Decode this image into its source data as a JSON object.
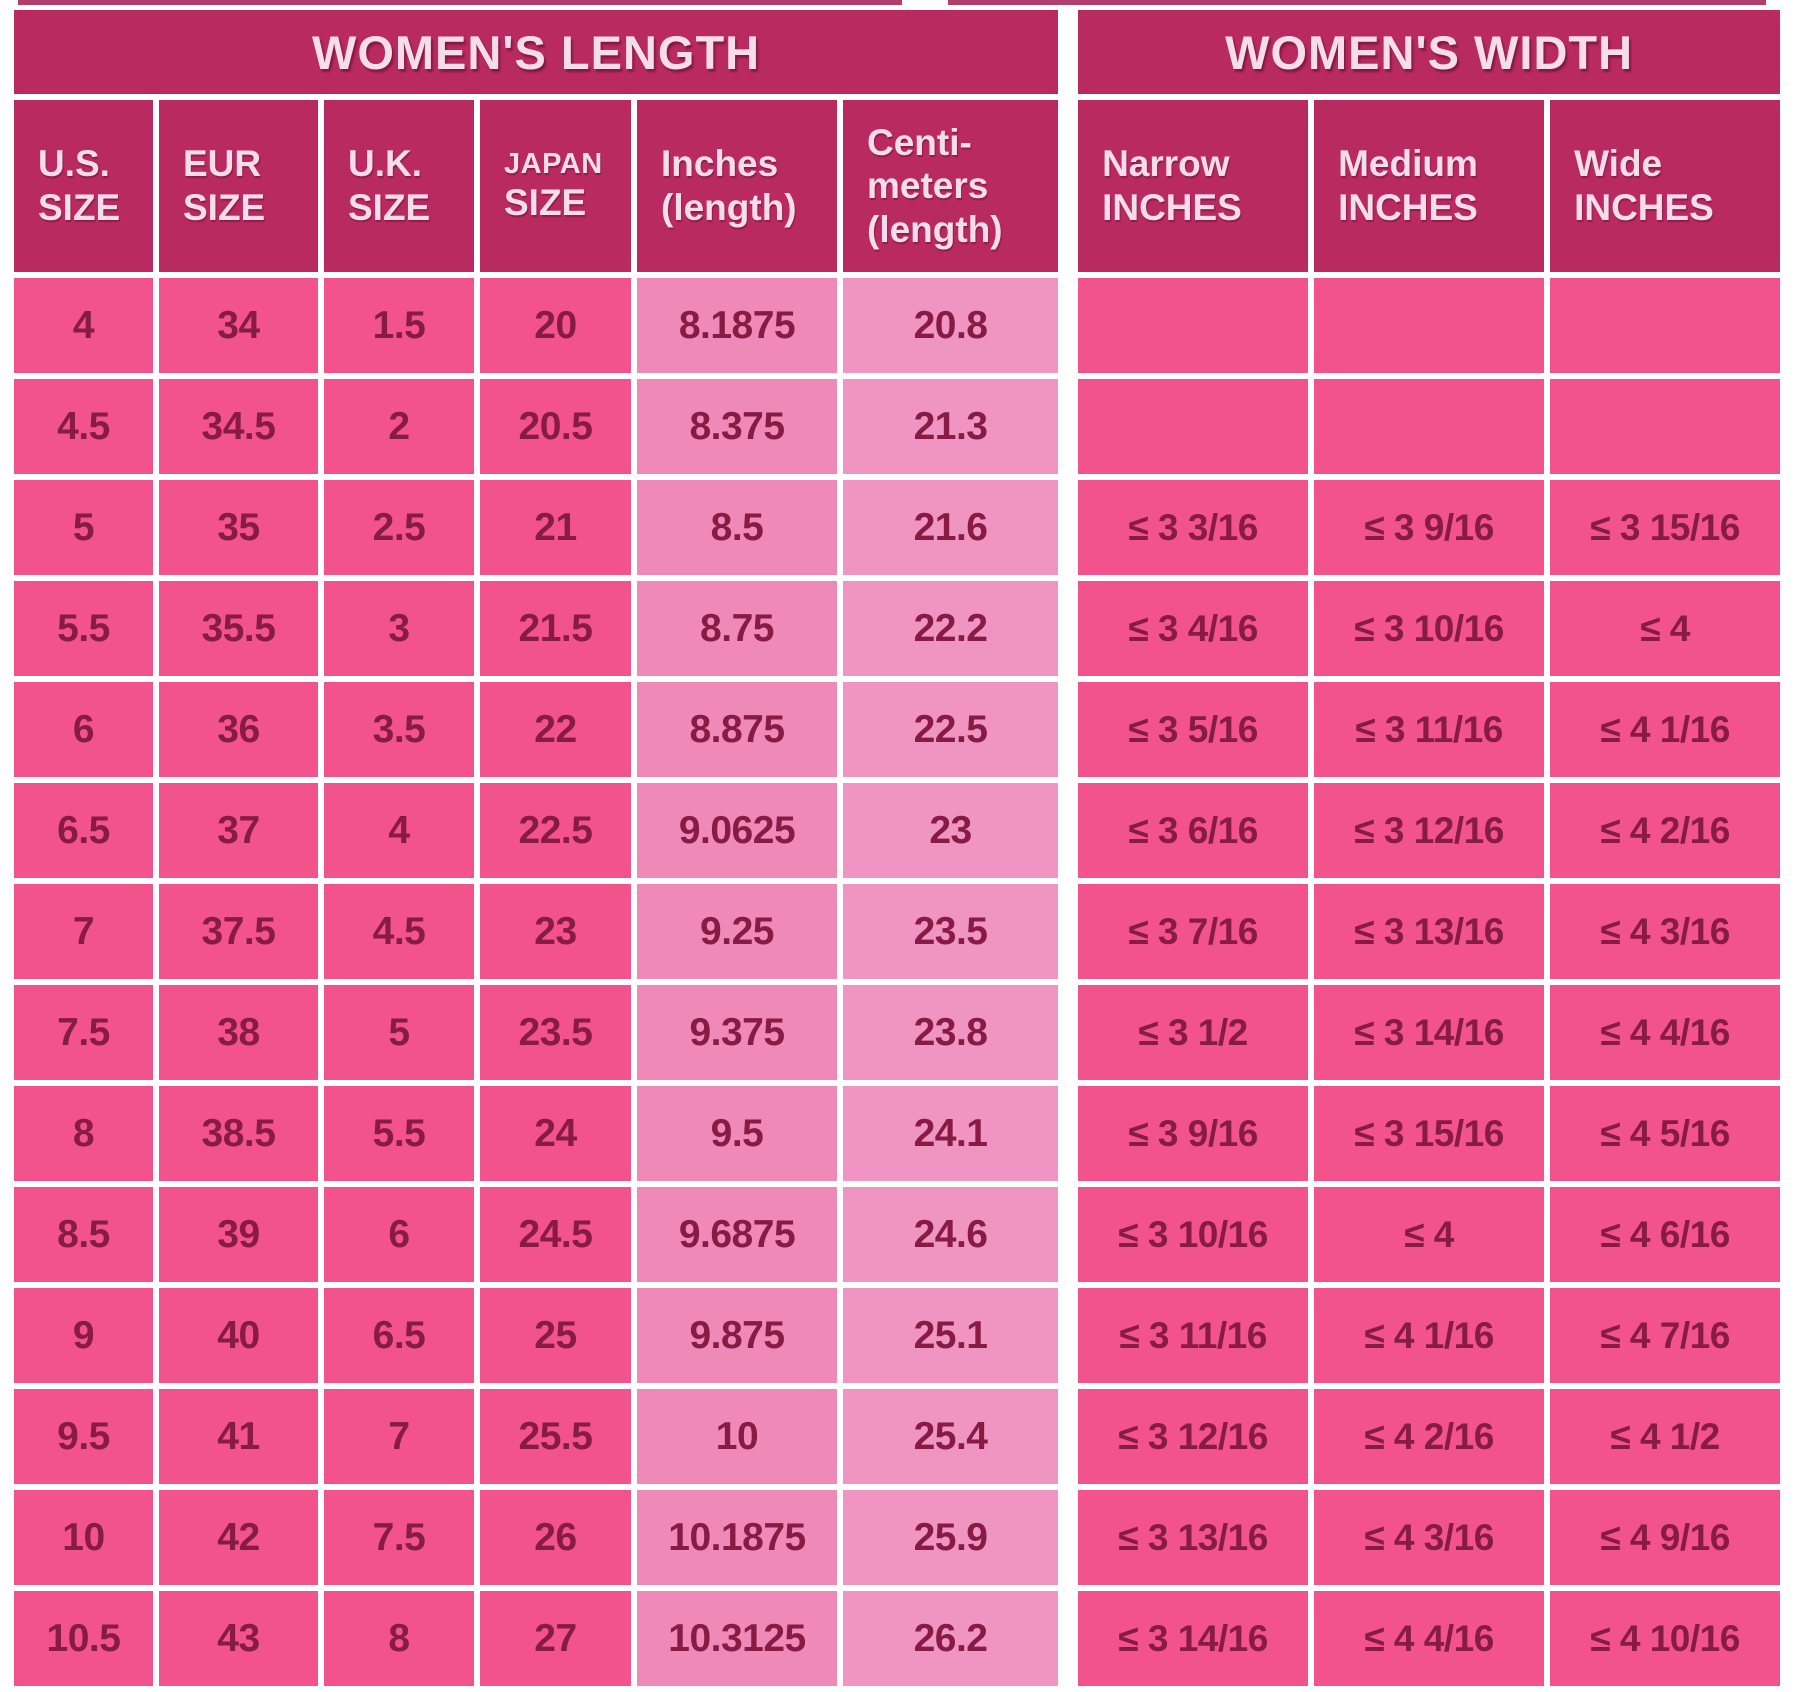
{
  "colors": {
    "page_bg": "#ffffff",
    "header_bg": "#b92b60",
    "header_text": "#f7dde9",
    "cell_pink": "#f2538c",
    "inches_col_bg": "#ef89b8",
    "cm_col_bg": "#f095c1",
    "data_text": "#871b44",
    "grid_white": "#ffffff",
    "crop_edge": "#a41c51"
  },
  "chart_data": [
    {
      "type": "table",
      "title": "WOMEN'S LENGTH",
      "columns": [
        {
          "lines": [
            "U.S.",
            "SIZE"
          ]
        },
        {
          "lines": [
            "EUR",
            "SIZE"
          ]
        },
        {
          "lines": [
            "U.K.",
            "SIZE"
          ]
        },
        {
          "lines": [
            "JAPAN",
            "SIZE"
          ],
          "first_line_small": true
        },
        {
          "lines": [
            "Inches",
            "(length)"
          ]
        },
        {
          "lines": [
            "Centi-",
            "meters",
            "(length)"
          ]
        }
      ],
      "rows": [
        [
          "4",
          "34",
          "1.5",
          "20",
          "8.1875",
          "20.8"
        ],
        [
          "4.5",
          "34.5",
          "2",
          "20.5",
          "8.375",
          "21.3"
        ],
        [
          "5",
          "35",
          "2.5",
          "21",
          "8.5",
          "21.6"
        ],
        [
          "5.5",
          "35.5",
          "3",
          "21.5",
          "8.75",
          "22.2"
        ],
        [
          "6",
          "36",
          "3.5",
          "22",
          "8.875",
          "22.5"
        ],
        [
          "6.5",
          "37",
          "4",
          "22.5",
          "9.0625",
          "23"
        ],
        [
          "7",
          "37.5",
          "4.5",
          "23",
          "9.25",
          "23.5"
        ],
        [
          "7.5",
          "38",
          "5",
          "23.5",
          "9.375",
          "23.8"
        ],
        [
          "8",
          "38.5",
          "5.5",
          "24",
          "9.5",
          "24.1"
        ],
        [
          "8.5",
          "39",
          "6",
          "24.5",
          "9.6875",
          "24.6"
        ],
        [
          "9",
          "40",
          "6.5",
          "25",
          "9.875",
          "25.1"
        ],
        [
          "9.5",
          "41",
          "7",
          "25.5",
          "10",
          "25.4"
        ],
        [
          "10",
          "42",
          "7.5",
          "26",
          "10.1875",
          "25.9"
        ],
        [
          "10.5",
          "43",
          "8",
          "27",
          "10.3125",
          "26.2"
        ]
      ]
    },
    {
      "type": "table",
      "title": "WOMEN'S WIDTH",
      "columns": [
        {
          "lines": [
            "Narrow",
            "INCHES"
          ]
        },
        {
          "lines": [
            "Medium",
            "INCHES"
          ]
        },
        {
          "lines": [
            "Wide",
            "INCHES"
          ]
        }
      ],
      "rows": [
        [
          "",
          "",
          ""
        ],
        [
          "",
          "",
          ""
        ],
        [
          "≤ 3 3/16",
          "≤ 3 9/16",
          "≤ 3 15/16"
        ],
        [
          "≤ 3 4/16",
          "≤ 3 10/16",
          "≤ 4"
        ],
        [
          "≤ 3 5/16",
          "≤ 3 11/16",
          "≤ 4 1/16"
        ],
        [
          "≤ 3 6/16",
          "≤ 3 12/16",
          "≤ 4 2/16"
        ],
        [
          "≤ 3 7/16",
          "≤ 3 13/16",
          "≤ 4 3/16"
        ],
        [
          "≤ 3 1/2",
          "≤ 3 14/16",
          "≤ 4 4/16"
        ],
        [
          "≤ 3 9/16",
          "≤ 3 15/16",
          "≤ 4 5/16"
        ],
        [
          "≤ 3 10/16",
          "≤ 4",
          "≤ 4 6/16"
        ],
        [
          "≤ 3 11/16",
          "≤ 4 1/16",
          "≤ 4 7/16"
        ],
        [
          "≤ 3 12/16",
          "≤ 4 2/16",
          "≤ 4 1/2"
        ],
        [
          "≤ 3 13/16",
          "≤ 4 3/16",
          "≤ 4 9/16"
        ],
        [
          "≤ 3 14/16",
          "≤ 4 4/16",
          "≤ 4 10/16"
        ]
      ]
    }
  ]
}
